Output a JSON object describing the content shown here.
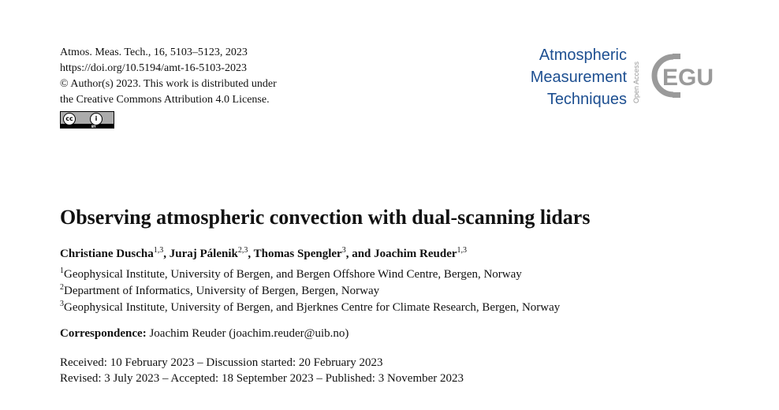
{
  "header": {
    "citation": "Atmos. Meas. Tech., 16, 5103–5123, 2023",
    "doi": "https://doi.org/10.5194/amt-16-5103-2023",
    "copyright": "© Author(s) 2023. This work is distributed under",
    "license": "the Creative Commons Attribution 4.0 License.",
    "license_badge": {
      "cc": "cc",
      "person": "i",
      "by": "BY"
    }
  },
  "journal": {
    "name_line1": "Atmospheric",
    "name_line2": "Measurement",
    "name_line3": "Techniques",
    "open_access": "Open Access",
    "publisher_logo": "EGU",
    "color": "#1d4f91",
    "logo_color": "#9a9a9a"
  },
  "article": {
    "title": "Observing atmospheric convection with dual-scanning lidars",
    "authors": [
      {
        "name": "Christiane Duscha",
        "sup": "1,3",
        "sep": ", "
      },
      {
        "name": "Juraj Pálenik",
        "sup": "2,3",
        "sep": ", "
      },
      {
        "name": "Thomas Spengler",
        "sup": "3",
        "sep": ", and "
      },
      {
        "name": "Joachim Reuder",
        "sup": "1,3",
        "sep": ""
      }
    ],
    "affiliations": [
      {
        "num": "1",
        "text": "Geophysical Institute, University of Bergen, and Bergen Offshore Wind Centre, Bergen, Norway"
      },
      {
        "num": "2",
        "text": "Department of Informatics, University of Bergen, Bergen, Norway"
      },
      {
        "num": "3",
        "text": "Geophysical Institute, University of Bergen, and Bjerknes Centre for Climate Research, Bergen, Norway"
      }
    ],
    "correspondence_label": "Correspondence:",
    "correspondence_text": " Joachim Reuder (joachim.reuder@uib.no)",
    "dates_line1": "Received: 10 February 2023 – Discussion started: 20 February 2023",
    "dates_line2": "Revised: 3 July 2023 – Accepted: 18 September 2023 – Published: 3 November 2023"
  }
}
